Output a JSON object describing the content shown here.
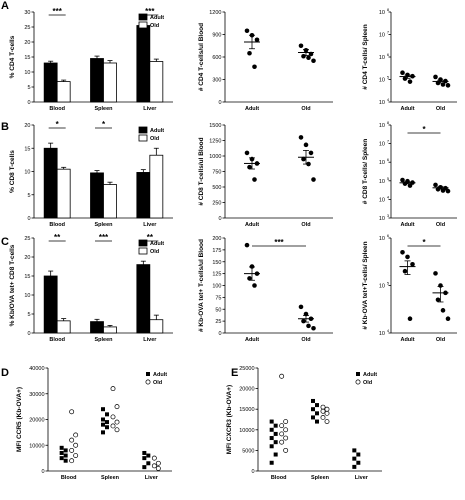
{
  "chart_data": [
    {
      "id": "A1",
      "type": "bar",
      "panel_letter": "A",
      "categories": [
        "Blood",
        "Spleen",
        "Liver"
      ],
      "series": [
        {
          "name": "Adult",
          "values": [
            13,
            14.5,
            25.5
          ],
          "errors": [
            0.6,
            0.8,
            0.6
          ]
        },
        {
          "name": "Old",
          "values": [
            6.8,
            13,
            13.5
          ],
          "errors": [
            0.5,
            0.8,
            0.8
          ]
        }
      ],
      "ylabel": "% CD4 T-cells",
      "ylim": [
        0,
        30
      ],
      "yticks": [
        "0",
        "5",
        "10",
        "15",
        "20",
        "25",
        "30"
      ],
      "significance": [
        {
          "cats": [
            0
          ],
          "label": "***"
        },
        {
          "cats": [
            2
          ],
          "label": "***"
        }
      ],
      "legend": "top-right"
    },
    {
      "id": "A2",
      "type": "scatter",
      "categories": [
        "Adult",
        "Old"
      ],
      "groups": [
        [
          950,
          890,
          830,
          650,
          470
        ],
        [
          750,
          690,
          640,
          610,
          590,
          550
        ]
      ],
      "means": [
        800,
        660
      ],
      "sems": [
        90,
        40
      ],
      "ylabel": "# CD4 T-cells/ul Blood",
      "ylim": [
        0,
        1200
      ],
      "yticks": [
        "0",
        "300",
        "600",
        "900",
        "1200"
      ],
      "scale": "linear"
    },
    {
      "id": "A3",
      "type": "scatter",
      "categories": [
        "Adult",
        "Old"
      ],
      "groups": [
        [
          200000,
          160000,
          140000,
          110000,
          80000
        ],
        [
          130000,
          100000,
          85000,
          70000,
          60000,
          55000
        ]
      ],
      "means": [
        135000,
        82000
      ],
      "sems": [
        22000,
        12000
      ],
      "ylabel": "# CD4 T-cells/ Spleen",
      "ylim": [
        10000,
        100000000
      ],
      "yticks": [
        "10",
        "10",
        "10",
        "10",
        "10"
      ],
      "ytick_exp": [
        "4",
        "5",
        "6",
        "7",
        "8"
      ],
      "scale": "log"
    },
    {
      "id": "B1",
      "type": "bar",
      "panel_letter": "B",
      "categories": [
        "Blood",
        "Spleen",
        "Liver"
      ],
      "series": [
        {
          "name": "Adult",
          "values": [
            15,
            9.7,
            9.8
          ],
          "errors": [
            1.1,
            0.5,
            0.6
          ]
        },
        {
          "name": "Old",
          "values": [
            10.5,
            7.2,
            13.5
          ],
          "errors": [
            0.4,
            0.5,
            1.5
          ]
        }
      ],
      "ylabel": "% CD8 T-cells",
      "ylim": [
        0,
        20
      ],
      "yticks": [
        "0",
        "5",
        "10",
        "15",
        "20"
      ],
      "significance": [
        {
          "cats": [
            0
          ],
          "label": "*"
        },
        {
          "cats": [
            1
          ],
          "label": "*"
        }
      ],
      "legend": "top-right"
    },
    {
      "id": "B2",
      "type": "scatter",
      "categories": [
        "Adult",
        "Old"
      ],
      "groups": [
        [
          1050,
          950,
          880,
          820,
          620
        ],
        [
          1300,
          1180,
          1050,
          950,
          870,
          620
        ]
      ],
      "means": [
        880,
        980
      ],
      "sems": [
        90,
        110
      ],
      "ylabel": "# CD8 T-cells/ul Blood",
      "ylim": [
        0,
        1500
      ],
      "yticks": [
        "0",
        "250",
        "500",
        "750",
        "1000",
        "1250",
        "1500"
      ],
      "scale": "linear"
    },
    {
      "id": "B3",
      "type": "scatter",
      "categories": [
        "Adult",
        "Old"
      ],
      "groups": [
        [
          110000,
          95000,
          80000,
          70000,
          55000
        ],
        [
          60000,
          45000,
          40000,
          35000,
          30000,
          28000
        ]
      ],
      "means": [
        78000,
        42000
      ],
      "sems": [
        9000,
        6000
      ],
      "ylabel": "# CD8 T-cells/ Spleen",
      "ylim": [
        1000,
        100000000
      ],
      "yticks": [
        "10",
        "10",
        "10",
        "10",
        "10",
        "10"
      ],
      "ytick_exp": [
        "3",
        "4",
        "5",
        "6",
        "7",
        "8"
      ],
      "scale": "log",
      "significance": [
        {
          "label": "*"
        }
      ]
    },
    {
      "id": "C1",
      "type": "bar",
      "panel_letter": "C",
      "categories": [
        "Blood",
        "Spleen",
        "Liver"
      ],
      "series": [
        {
          "name": "Adult",
          "values": [
            15,
            3,
            18
          ],
          "errors": [
            1.3,
            0.6,
            0.9
          ]
        },
        {
          "name": "Old",
          "values": [
            3.2,
            1.6,
            3.5
          ],
          "errors": [
            0.6,
            0.4,
            1.2
          ]
        }
      ],
      "ylabel": "% Kb/OVA tet+ CD8 T-cells",
      "ylim": [
        0,
        25
      ],
      "yticks": [
        "0",
        "5",
        "10",
        "15",
        "20",
        "25"
      ],
      "significance": [
        {
          "cats": [
            0
          ],
          "label": "**"
        },
        {
          "cats": [
            1
          ],
          "label": "***"
        },
        {
          "cats": [
            2
          ],
          "label": "**"
        }
      ],
      "legend": "top-right"
    },
    {
      "id": "C2",
      "type": "scatter",
      "categories": [
        "Adult",
        "Old"
      ],
      "groups": [
        [
          185,
          140,
          125,
          115,
          100
        ],
        [
          55,
          40,
          30,
          25,
          15,
          10
        ]
      ],
      "means": [
        125,
        30
      ],
      "sems": [
        14,
        7
      ],
      "ylabel": "# Kb-OVA tet+ T-cells/ul Blood",
      "ylim": [
        0,
        200
      ],
      "yticks": [
        "0",
        "25",
        "50",
        "75",
        "100",
        "125",
        "150",
        "175",
        "200"
      ],
      "scale": "linear",
      "significance": [
        {
          "label": "***"
        }
      ]
    },
    {
      "id": "C3",
      "type": "scatter",
      "categories": [
        "Adult",
        "Old"
      ],
      "groups": [
        [
          500000,
          400000,
          280000,
          200000,
          20000
        ],
        [
          180000,
          100000,
          70000,
          50000,
          30000,
          20000
        ]
      ],
      "means": [
        250000,
        70000
      ],
      "sems": [
        80000,
        25000
      ],
      "ylabel": "# Kb-OVA tet+T-cells/ Spleen",
      "ylim": [
        10000,
        1000000
      ],
      "yticks": [
        "10",
        "10",
        "10"
      ],
      "ytick_exp": [
        "4",
        "5",
        "6"
      ],
      "scale": "log",
      "significance": [
        {
          "label": "*"
        }
      ]
    },
    {
      "id": "D",
      "type": "scatter",
      "panel_letter": "D",
      "categories": [
        "Blood",
        "Spleen",
        "Liver"
      ],
      "series": [
        {
          "name": "Adult",
          "groups": [
            [
              9000,
              8000,
              7000,
              6000,
              5000,
              4000
            ],
            [
              24000,
              22000,
              20000,
              19000,
              18000,
              17000,
              15000
            ],
            [
              7000,
              6000,
              5000,
              3000,
              1500
            ]
          ]
        },
        {
          "name": "Old",
          "groups": [
            [
              23000,
              14000,
              12000,
              10000,
              8000,
              6000,
              4000
            ],
            [
              32000,
              25000,
              21000,
              19000,
              17500,
              16000
            ],
            [
              5000,
              3000,
              2000,
              1000
            ]
          ]
        }
      ],
      "ylabel": "MFI CCR5 (Kb-OVA+)",
      "ylim": [
        0,
        40000
      ],
      "yticks": [
        "0",
        "10000",
        "20000",
        "30000",
        "40000"
      ],
      "legend": "top-right"
    },
    {
      "id": "E",
      "type": "scatter",
      "panel_letter": "E",
      "categories": [
        "Blood",
        "Spleen",
        "Liver"
      ],
      "series": [
        {
          "name": "Adult",
          "groups": [
            [
              12000,
              11000,
              10000,
              9000,
              8000,
              7000,
              6000,
              4000,
              2000
            ],
            [
              17000,
              16000,
              15000,
              14000,
              13000,
              12000
            ],
            [
              5000,
              4000,
              3000,
              2000,
              1000
            ]
          ]
        },
        {
          "name": "Old",
          "groups": [
            [
              23000,
              12000,
              11000,
              10000,
              9000,
              8000,
              7000,
              5000
            ],
            [
              15500,
              15000,
              14500,
              14000,
              13000,
              12000
            ],
            []
          ]
        }
      ],
      "ylabel": "MFI CXCR3 (Kb-OVA+)",
      "ylim": [
        0,
        25000
      ],
      "yticks": [
        "0",
        "5000",
        "10000",
        "15000",
        "20000",
        "25000"
      ],
      "legend": "top-right"
    }
  ]
}
